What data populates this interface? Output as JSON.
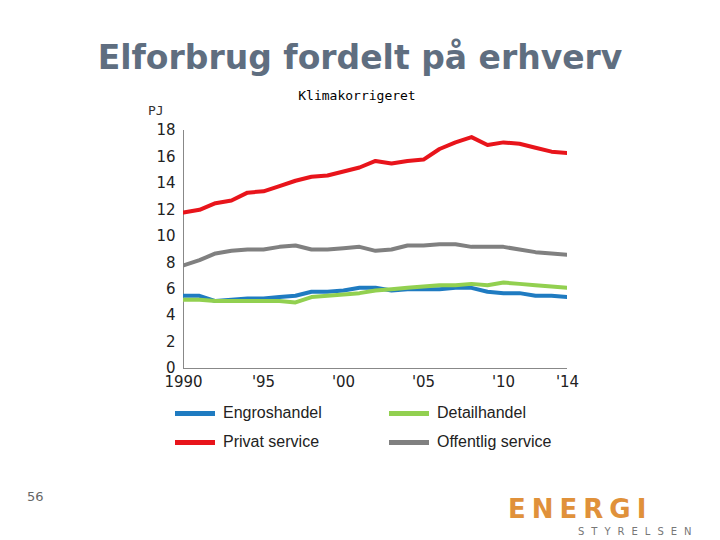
{
  "chart_data": {
    "type": "line",
    "title": "Elforbrug fordelt på erhverv",
    "subtitle": "Klimakorrigeret",
    "y_label": "PJ",
    "x": [
      1990,
      1991,
      1992,
      1993,
      1994,
      1995,
      1996,
      1997,
      1998,
      1999,
      2000,
      2001,
      2002,
      2003,
      2004,
      2005,
      2006,
      2007,
      2008,
      2009,
      2010,
      2011,
      2012,
      2013,
      2014
    ],
    "series": [
      {
        "name": "Engroshandel",
        "color": "#1f7bc1",
        "values": [
          5.5,
          5.5,
          5.1,
          5.2,
          5.3,
          5.3,
          5.4,
          5.5,
          5.8,
          5.8,
          5.9,
          6.1,
          6.1,
          5.9,
          6.0,
          6.0,
          6.0,
          6.1,
          6.1,
          5.8,
          5.7,
          5.7,
          5.5,
          5.5,
          5.4
        ]
      },
      {
        "name": "Detailhandel",
        "color": "#92d050",
        "values": [
          5.2,
          5.2,
          5.1,
          5.1,
          5.1,
          5.1,
          5.1,
          5.0,
          5.4,
          5.5,
          5.6,
          5.7,
          5.9,
          6.0,
          6.1,
          6.2,
          6.3,
          6.3,
          6.4,
          6.3,
          6.5,
          6.4,
          6.3,
          6.2,
          6.1
        ]
      },
      {
        "name": "Privat service",
        "color": "#e8141b",
        "values": [
          11.8,
          12.0,
          12.5,
          12.7,
          13.3,
          13.4,
          13.8,
          14.2,
          14.5,
          14.6,
          14.9,
          15.2,
          15.7,
          15.5,
          15.7,
          15.8,
          16.6,
          17.1,
          17.5,
          16.9,
          17.1,
          17.0,
          16.7,
          16.4,
          16.3
        ]
      },
      {
        "name": "Offentlig service",
        "color": "#808080",
        "values": [
          7.8,
          8.2,
          8.7,
          8.9,
          9.0,
          9.0,
          9.2,
          9.3,
          9.0,
          9.0,
          9.1,
          9.2,
          8.9,
          9.0,
          9.3,
          9.3,
          9.4,
          9.4,
          9.2,
          9.2,
          9.2,
          9.0,
          8.8,
          8.7,
          8.6
        ]
      }
    ],
    "xlim": [
      1990,
      2014
    ],
    "xticks": [
      1990,
      {
        "value": 1995,
        "label": "'95"
      },
      {
        "value": 2000,
        "label": "'00"
      },
      {
        "value": 2005,
        "label": "'05"
      },
      {
        "value": 2010,
        "label": "'10"
      },
      {
        "value": 2014,
        "label": "'14"
      }
    ],
    "ylim": [
      0,
      18
    ],
    "yticks": [
      0,
      2,
      4,
      6,
      8,
      10,
      12,
      14,
      16,
      18
    ],
    "grid": false,
    "legend": "bottom",
    "page_number": "56",
    "logo": "ENERGI",
    "logo_subtitle": "STYRELSEN"
  }
}
